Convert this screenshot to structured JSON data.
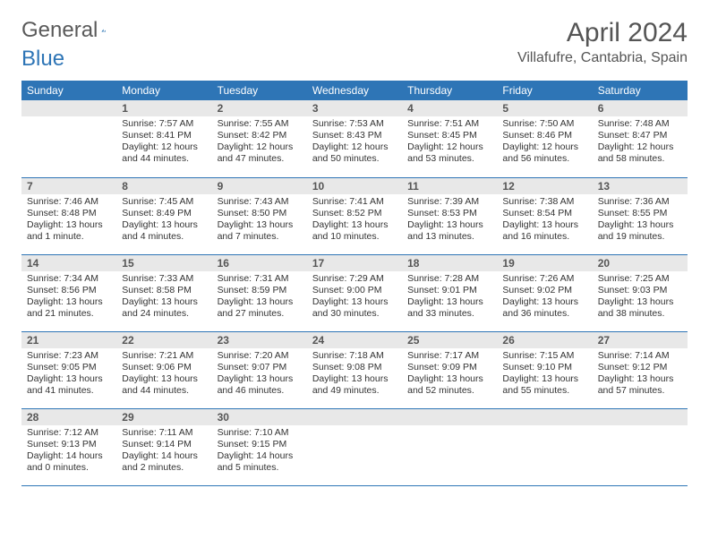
{
  "logo": {
    "word1": "General",
    "word2": "Blue"
  },
  "title": "April 2024",
  "location": "Villafufre, Cantabria, Spain",
  "colors": {
    "headerBg": "#2e75b6",
    "dayBg": "#e8e8e8",
    "border": "#2e75b6"
  },
  "dayHeaders": [
    "Sunday",
    "Monday",
    "Tuesday",
    "Wednesday",
    "Thursday",
    "Friday",
    "Saturday"
  ],
  "weeks": [
    [
      null,
      {
        "n": "1",
        "sunrise": "Sunrise: 7:57 AM",
        "sunset": "Sunset: 8:41 PM",
        "daylight": "Daylight: 12 hours and 44 minutes."
      },
      {
        "n": "2",
        "sunrise": "Sunrise: 7:55 AM",
        "sunset": "Sunset: 8:42 PM",
        "daylight": "Daylight: 12 hours and 47 minutes."
      },
      {
        "n": "3",
        "sunrise": "Sunrise: 7:53 AM",
        "sunset": "Sunset: 8:43 PM",
        "daylight": "Daylight: 12 hours and 50 minutes."
      },
      {
        "n": "4",
        "sunrise": "Sunrise: 7:51 AM",
        "sunset": "Sunset: 8:45 PM",
        "daylight": "Daylight: 12 hours and 53 minutes."
      },
      {
        "n": "5",
        "sunrise": "Sunrise: 7:50 AM",
        "sunset": "Sunset: 8:46 PM",
        "daylight": "Daylight: 12 hours and 56 minutes."
      },
      {
        "n": "6",
        "sunrise": "Sunrise: 7:48 AM",
        "sunset": "Sunset: 8:47 PM",
        "daylight": "Daylight: 12 hours and 58 minutes."
      }
    ],
    [
      {
        "n": "7",
        "sunrise": "Sunrise: 7:46 AM",
        "sunset": "Sunset: 8:48 PM",
        "daylight": "Daylight: 13 hours and 1 minute."
      },
      {
        "n": "8",
        "sunrise": "Sunrise: 7:45 AM",
        "sunset": "Sunset: 8:49 PM",
        "daylight": "Daylight: 13 hours and 4 minutes."
      },
      {
        "n": "9",
        "sunrise": "Sunrise: 7:43 AM",
        "sunset": "Sunset: 8:50 PM",
        "daylight": "Daylight: 13 hours and 7 minutes."
      },
      {
        "n": "10",
        "sunrise": "Sunrise: 7:41 AM",
        "sunset": "Sunset: 8:52 PM",
        "daylight": "Daylight: 13 hours and 10 minutes."
      },
      {
        "n": "11",
        "sunrise": "Sunrise: 7:39 AM",
        "sunset": "Sunset: 8:53 PM",
        "daylight": "Daylight: 13 hours and 13 minutes."
      },
      {
        "n": "12",
        "sunrise": "Sunrise: 7:38 AM",
        "sunset": "Sunset: 8:54 PM",
        "daylight": "Daylight: 13 hours and 16 minutes."
      },
      {
        "n": "13",
        "sunrise": "Sunrise: 7:36 AM",
        "sunset": "Sunset: 8:55 PM",
        "daylight": "Daylight: 13 hours and 19 minutes."
      }
    ],
    [
      {
        "n": "14",
        "sunrise": "Sunrise: 7:34 AM",
        "sunset": "Sunset: 8:56 PM",
        "daylight": "Daylight: 13 hours and 21 minutes."
      },
      {
        "n": "15",
        "sunrise": "Sunrise: 7:33 AM",
        "sunset": "Sunset: 8:58 PM",
        "daylight": "Daylight: 13 hours and 24 minutes."
      },
      {
        "n": "16",
        "sunrise": "Sunrise: 7:31 AM",
        "sunset": "Sunset: 8:59 PM",
        "daylight": "Daylight: 13 hours and 27 minutes."
      },
      {
        "n": "17",
        "sunrise": "Sunrise: 7:29 AM",
        "sunset": "Sunset: 9:00 PM",
        "daylight": "Daylight: 13 hours and 30 minutes."
      },
      {
        "n": "18",
        "sunrise": "Sunrise: 7:28 AM",
        "sunset": "Sunset: 9:01 PM",
        "daylight": "Daylight: 13 hours and 33 minutes."
      },
      {
        "n": "19",
        "sunrise": "Sunrise: 7:26 AM",
        "sunset": "Sunset: 9:02 PM",
        "daylight": "Daylight: 13 hours and 36 minutes."
      },
      {
        "n": "20",
        "sunrise": "Sunrise: 7:25 AM",
        "sunset": "Sunset: 9:03 PM",
        "daylight": "Daylight: 13 hours and 38 minutes."
      }
    ],
    [
      {
        "n": "21",
        "sunrise": "Sunrise: 7:23 AM",
        "sunset": "Sunset: 9:05 PM",
        "daylight": "Daylight: 13 hours and 41 minutes."
      },
      {
        "n": "22",
        "sunrise": "Sunrise: 7:21 AM",
        "sunset": "Sunset: 9:06 PM",
        "daylight": "Daylight: 13 hours and 44 minutes."
      },
      {
        "n": "23",
        "sunrise": "Sunrise: 7:20 AM",
        "sunset": "Sunset: 9:07 PM",
        "daylight": "Daylight: 13 hours and 46 minutes."
      },
      {
        "n": "24",
        "sunrise": "Sunrise: 7:18 AM",
        "sunset": "Sunset: 9:08 PM",
        "daylight": "Daylight: 13 hours and 49 minutes."
      },
      {
        "n": "25",
        "sunrise": "Sunrise: 7:17 AM",
        "sunset": "Sunset: 9:09 PM",
        "daylight": "Daylight: 13 hours and 52 minutes."
      },
      {
        "n": "26",
        "sunrise": "Sunrise: 7:15 AM",
        "sunset": "Sunset: 9:10 PM",
        "daylight": "Daylight: 13 hours and 55 minutes."
      },
      {
        "n": "27",
        "sunrise": "Sunrise: 7:14 AM",
        "sunset": "Sunset: 9:12 PM",
        "daylight": "Daylight: 13 hours and 57 minutes."
      }
    ],
    [
      {
        "n": "28",
        "sunrise": "Sunrise: 7:12 AM",
        "sunset": "Sunset: 9:13 PM",
        "daylight": "Daylight: 14 hours and 0 minutes."
      },
      {
        "n": "29",
        "sunrise": "Sunrise: 7:11 AM",
        "sunset": "Sunset: 9:14 PM",
        "daylight": "Daylight: 14 hours and 2 minutes."
      },
      {
        "n": "30",
        "sunrise": "Sunrise: 7:10 AM",
        "sunset": "Sunset: 9:15 PM",
        "daylight": "Daylight: 14 hours and 5 minutes."
      },
      null,
      null,
      null,
      null
    ]
  ]
}
